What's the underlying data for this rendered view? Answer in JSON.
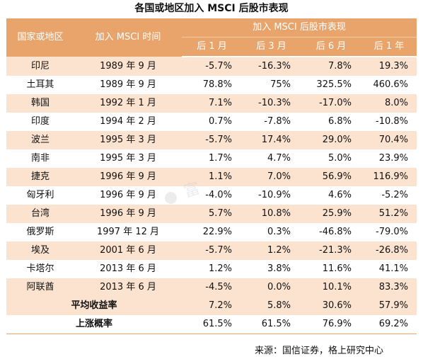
{
  "title": "各国或地区加入 MSCI 后股市表现",
  "headers": {
    "country": "国家或地区",
    "date": "加入 MSCI 时间",
    "performance": "加入 MSCI 后股市表现",
    "m1": "后 1 月",
    "m3": "后 3 月",
    "m6": "后 6 月",
    "y1": "后 1 年"
  },
  "rows": [
    {
      "country": "印尼",
      "date": "1989 年 9 月",
      "m1": "-5.7%",
      "m3": "-16.3%",
      "m6": "7.8%",
      "y1": "19.3%"
    },
    {
      "country": "土耳其",
      "date": "1989 年 9 月",
      "m1": "78.8%",
      "m3": "75%",
      "m6": "325.5%",
      "y1": "460.6%"
    },
    {
      "country": "韩国",
      "date": "1992 年 1 月",
      "m1": "7.1%",
      "m3": "-10.3%",
      "m6": "-17.0%",
      "y1": "8.0%"
    },
    {
      "country": "印度",
      "date": "1994 年 2 月",
      "m1": "0.7%",
      "m3": "-7.8%",
      "m6": "6.8%",
      "y1": "-10.8%"
    },
    {
      "country": "波兰",
      "date": "1995 年 3 月",
      "m1": "-5.7%",
      "m3": "17.4%",
      "m6": "29.0%",
      "y1": "70.4%"
    },
    {
      "country": "南非",
      "date": "1995 年 3 月",
      "m1": "1.7%",
      "m3": "4.7%",
      "m6": "5.0%",
      "y1": "23.9%"
    },
    {
      "country": "捷克",
      "date": "1996 年 9 月",
      "m1": "1.1%",
      "m3": "7.0%",
      "m6": "56.9%",
      "y1": "116.9%"
    },
    {
      "country": "匈牙利",
      "date": "1996 年 9 月",
      "m1": "-4.0%",
      "m3": "-10.9%",
      "m6": "4.6%",
      "y1": "-5.2%"
    },
    {
      "country": "台湾",
      "date": "1996 年 9 月",
      "m1": "5.7%",
      "m3": "10.8%",
      "m6": "25.9%",
      "y1": "51.2%"
    },
    {
      "country": "俄罗斯",
      "date": "1997 年 12 月",
      "m1": "22.9%",
      "m3": "0.3%",
      "m6": "-46.8%",
      "y1": "-79.0%"
    },
    {
      "country": "埃及",
      "date": "2001 年 6 月",
      "m1": "-5.7%",
      "m3": "1.2%",
      "m6": "-21.3%",
      "y1": "-26.8%"
    },
    {
      "country": "卡塔尔",
      "date": "2013 年 6 月",
      "m1": "1.2%",
      "m3": "3.8%",
      "m6": "11.6%",
      "y1": "41.1%"
    },
    {
      "country": "阿联酋",
      "date": "2013 年 6 月",
      "m1": "-4.5%",
      "m3": "0.0%",
      "m6": "10.1%",
      "y1": "83.3%"
    }
  ],
  "summary": [
    {
      "label": "平均收益率",
      "m1": "7.2%",
      "m3": "5.8%",
      "m6": "30.6%",
      "y1": "57.9%"
    },
    {
      "label": "上涨概率",
      "m1": "61.5%",
      "m3": "61.5%",
      "m6": "76.9%",
      "y1": "69.2%"
    }
  ],
  "source": "来源：国信证券，格上研究中心",
  "colors": {
    "header": "#e8a46b",
    "stripe": "#fbe3d0"
  }
}
